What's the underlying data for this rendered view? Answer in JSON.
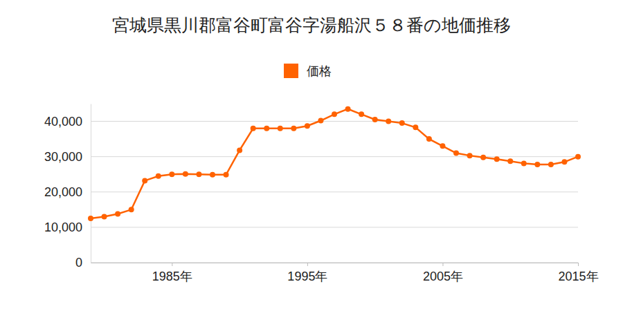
{
  "chart_data": {
    "type": "line",
    "title": "宮城県黒川郡富谷町富谷字湯船沢５８番の地価推移",
    "x": [
      1979,
      1980,
      1981,
      1982,
      1983,
      1984,
      1985,
      1986,
      1987,
      1988,
      1989,
      1990,
      1991,
      1992,
      1993,
      1994,
      1995,
      1996,
      1997,
      1998,
      1999,
      2000,
      2001,
      2002,
      2003,
      2004,
      2005,
      2006,
      2007,
      2008,
      2009,
      2010,
      2011,
      2012,
      2013,
      2014,
      2015
    ],
    "series": [
      {
        "name": "価格",
        "color": "#ff6200",
        "marker": "circle",
        "line_style": "solid",
        "values": [
          12500,
          13000,
          13800,
          15000,
          23200,
          24500,
          25000,
          25100,
          25000,
          24900,
          24900,
          31800,
          38000,
          38000,
          38000,
          38000,
          38700,
          40200,
          42000,
          43500,
          42000,
          40500,
          40000,
          39500,
          38300,
          35000,
          33000,
          31000,
          30300,
          29800,
          29300,
          28700,
          28100,
          27800,
          27800,
          28500,
          30000
        ]
      }
    ],
    "xlim": [
      1979,
      2015
    ],
    "xticks": [
      {
        "value": 1985,
        "label": "1985年"
      },
      {
        "value": 1995,
        "label": "1995年"
      },
      {
        "value": 2005,
        "label": "2005年"
      },
      {
        "value": 2015,
        "label": "2015年"
      }
    ],
    "ylim": [
      0,
      45000
    ],
    "yticks": [
      0,
      {
        "value": 10000,
        "label": "10,000"
      },
      {
        "value": 20000,
        "label": "20,000"
      },
      {
        "value": 30000,
        "label": "30,000"
      },
      {
        "value": 40000,
        "label": "40,000"
      }
    ],
    "grid": true,
    "legend": "top"
  }
}
